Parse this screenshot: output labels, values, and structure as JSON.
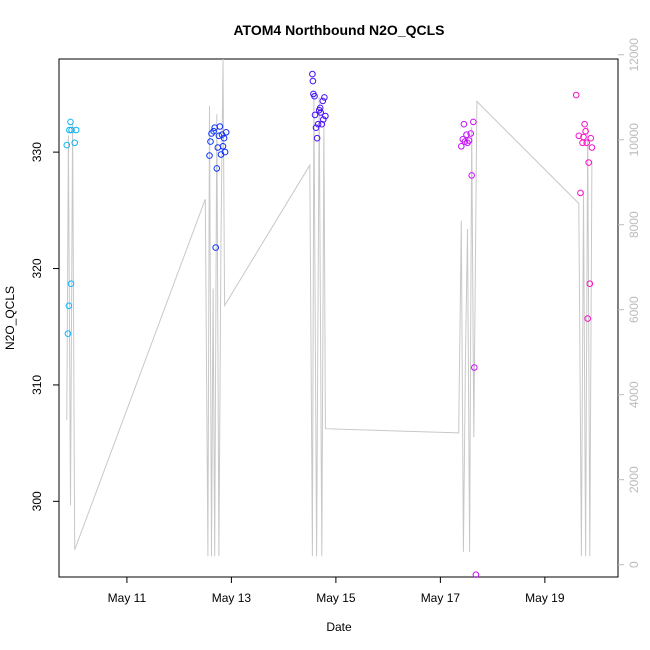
{
  "chart_data": {
    "type": "scatter",
    "title": "ATOM4 Northbound N2O_QCLS",
    "xlabel": "Date",
    "ylabel": "N2O_QCLS",
    "x_tick_labels": [
      "May 11",
      "May 13",
      "May 15",
      "May 17",
      "May 19"
    ],
    "x_tick_positions": [
      11,
      13,
      15,
      17,
      19
    ],
    "xlim": [
      9.7,
      20.4
    ],
    "ylim": [
      293.5,
      338
    ],
    "y_ticks": [
      300,
      310,
      320,
      330
    ],
    "y2_ticks": [
      0,
      2000,
      4000,
      6000,
      8000,
      10000,
      12000
    ],
    "y2lim": [
      -290,
      11900
    ],
    "grid": false,
    "legend": "none",
    "series": [
      {
        "values": [
          [
            9.85,
            330.6
          ],
          [
            9.9,
            331.9
          ],
          [
            9.92,
            332.6
          ],
          [
            9.94,
            331.9
          ],
          [
            10.0,
            330.8
          ],
          [
            10.03,
            331.9
          ],
          [
            9.87,
            314.4
          ],
          [
            9.89,
            316.8
          ],
          [
            9.93,
            318.7
          ],
          [
            12.58,
            329.7
          ],
          [
            12.6,
            330.9
          ],
          [
            12.62,
            331.6
          ],
          [
            12.66,
            331.8
          ],
          [
            12.68,
            332.1
          ],
          [
            12.7,
            321.8
          ],
          [
            12.72,
            328.6
          ],
          [
            12.74,
            330.4
          ],
          [
            12.76,
            331.4
          ],
          [
            12.78,
            332.2
          ],
          [
            12.8,
            329.8
          ],
          [
            12.82,
            331.5
          ],
          [
            12.84,
            330.5
          ],
          [
            12.86,
            331.2
          ],
          [
            12.88,
            330.0
          ],
          [
            12.9,
            331.7
          ],
          [
            14.55,
            336.7
          ],
          [
            14.56,
            336.1
          ],
          [
            14.57,
            335.0
          ],
          [
            14.59,
            334.8
          ],
          [
            14.6,
            333.2
          ],
          [
            14.62,
            332.1
          ],
          [
            14.64,
            331.2
          ],
          [
            14.66,
            332.4
          ],
          [
            14.68,
            333.6
          ],
          [
            14.7,
            333.8
          ],
          [
            14.71,
            333.4
          ],
          [
            14.73,
            332.4
          ],
          [
            14.75,
            334.4
          ],
          [
            14.76,
            332.8
          ],
          [
            14.78,
            334.7
          ],
          [
            14.8,
            333.1
          ],
          [
            17.4,
            330.5
          ],
          [
            17.43,
            331.1
          ],
          [
            17.45,
            332.4
          ],
          [
            17.47,
            330.9
          ],
          [
            17.5,
            331.5
          ],
          [
            17.52,
            330.8
          ],
          [
            17.55,
            331.0
          ],
          [
            17.58,
            331.6
          ],
          [
            17.6,
            328.0
          ],
          [
            17.63,
            332.6
          ],
          [
            17.65,
            311.5
          ],
          [
            17.68,
            293.7
          ],
          [
            19.6,
            334.9
          ],
          [
            19.65,
            331.4
          ],
          [
            19.68,
            326.5
          ],
          [
            19.72,
            330.8
          ],
          [
            19.74,
            331.3
          ],
          [
            19.76,
            332.4
          ],
          [
            19.78,
            331.8
          ],
          [
            19.8,
            330.8
          ],
          [
            19.82,
            315.7
          ],
          [
            19.84,
            329.1
          ],
          [
            19.86,
            318.7
          ],
          [
            19.88,
            331.2
          ],
          [
            19.9,
            330.4
          ]
        ]
      },
      {
        "axis": "y2",
        "values": [
          [
            9.85,
            3400
          ],
          [
            9.88,
            10100
          ],
          [
            9.92,
            1400
          ],
          [
            9.96,
            10400
          ],
          [
            10.0,
            350
          ],
          [
            12.5,
            8600
          ],
          [
            12.55,
            200
          ],
          [
            12.58,
            10800
          ],
          [
            12.62,
            200
          ],
          [
            12.65,
            6500
          ],
          [
            12.68,
            200
          ],
          [
            12.72,
            10600
          ],
          [
            12.76,
            200
          ],
          [
            12.8,
            7700
          ],
          [
            12.84,
            11900
          ],
          [
            12.87,
            6100
          ],
          [
            14.5,
            9400
          ],
          [
            14.55,
            200
          ],
          [
            14.58,
            11100
          ],
          [
            14.63,
            200
          ],
          [
            14.68,
            11000
          ],
          [
            14.73,
            200
          ],
          [
            14.77,
            10400
          ],
          [
            14.8,
            3200
          ],
          [
            17.35,
            3100
          ],
          [
            17.4,
            8100
          ],
          [
            17.44,
            300
          ],
          [
            17.48,
            4900
          ],
          [
            17.52,
            7900
          ],
          [
            17.56,
            300
          ],
          [
            17.6,
            10300
          ],
          [
            17.64,
            3000
          ],
          [
            17.7,
            10900
          ],
          [
            19.65,
            8500
          ],
          [
            19.7,
            200
          ],
          [
            19.74,
            8800
          ],
          [
            19.78,
            200
          ],
          [
            19.82,
            10300
          ],
          [
            19.86,
            200
          ],
          [
            19.9,
            9500
          ]
        ]
      }
    ]
  }
}
